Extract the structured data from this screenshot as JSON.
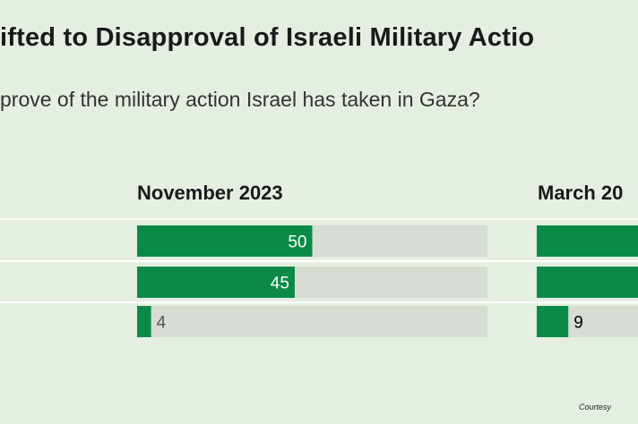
{
  "chart_data": [
    {
      "type": "bar",
      "title": "ifted to Disapproval of Israeli Military Actio",
      "subtitle": "prove of the military action Israel has taken in Gaza?",
      "panel": "November 2023",
      "categories": [
        "",
        "",
        ""
      ],
      "values": [
        50,
        45,
        4
      ],
      "xlim": [
        0,
        100
      ],
      "colors": {
        "bar": "#0b8a47",
        "track": "#d6ddd4",
        "label_inside": "#ffffff",
        "label_outside": "#555555"
      }
    },
    {
      "type": "bar",
      "panel": "March 20",
      "categories": [
        "",
        "",
        ""
      ],
      "values": [
        null,
        null,
        9
      ],
      "xlim": [
        0,
        100
      ],
      "colors": {
        "bar": "#0b8a47",
        "track": "#d6ddd4",
        "label_inside": "#ffffff"
      }
    }
  ],
  "footer": {
    "credit": "Courtesy"
  }
}
